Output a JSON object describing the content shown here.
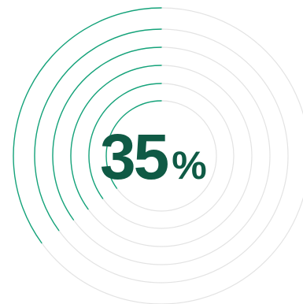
{
  "progress": {
    "value": 35,
    "unit": "%",
    "colors": {
      "accent": "#14a37a",
      "track": "#e3e3e3",
      "text": "#0f5a45"
    }
  },
  "rings": [
    {
      "name": "ring-1",
      "progress": 0.35
    },
    {
      "name": "ring-2",
      "progress": 0.35
    },
    {
      "name": "ring-3",
      "progress": 0.35
    },
    {
      "name": "ring-4",
      "progress": 0.35
    },
    {
      "name": "ring-5",
      "progress": 0.35
    },
    {
      "name": "ring-6",
      "progress": 0.35
    }
  ]
}
